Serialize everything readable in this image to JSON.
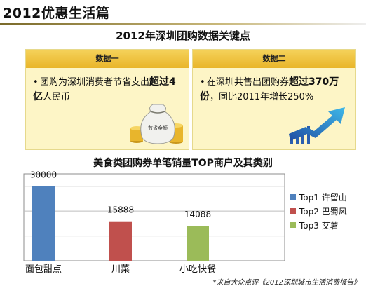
{
  "page_title": "2012优惠生活篇",
  "subtitle": "2012年深圳团购数据关键点",
  "cards": [
    {
      "header": "数据一",
      "text_pre": "团购为深圳消费者节省支出",
      "text_bold": "超过4亿",
      "text_post": "人民币",
      "icon": "money-bag-icon",
      "bag_label": "节省金额"
    },
    {
      "header": "数据二",
      "text_pre": "在深圳共售出团购券",
      "text_bold": "超过370万份",
      "text_post": "，同比2011年增长250%",
      "icon": "growth-arrow-icon"
    }
  ],
  "chart_title": "美食类团购券单笔销量TOP商户及其类别",
  "footnote": "*来自大众点评《2012深圳城市生活消费报告》",
  "chart_data": {
    "type": "bar",
    "categories": [
      "面包甜点",
      "川菜",
      "小吃快餐"
    ],
    "values": [
      30000,
      15888,
      14088
    ],
    "value_labels": [
      "30000",
      "15888",
      "14088"
    ],
    "ylim": [
      0,
      35000
    ],
    "grid": true,
    "legend": {
      "position": "right",
      "entries": [
        "Top1 许留山",
        "Top2 巴蜀风",
        "Top3 艾薯"
      ]
    },
    "colors": [
      "#4f81bd",
      "#c0504d",
      "#9bbb59"
    ]
  }
}
